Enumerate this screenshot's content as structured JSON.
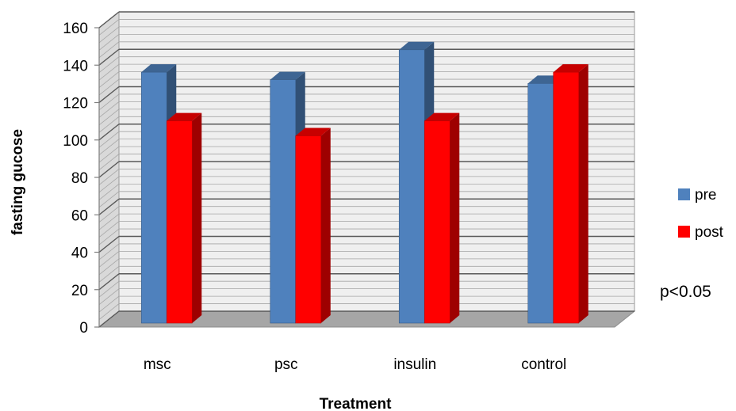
{
  "chart_data": {
    "type": "bar",
    "categories": [
      "msc",
      "psc",
      "insulin",
      "control"
    ],
    "series": [
      {
        "name": "pre",
        "values": [
          132,
          128,
          144,
          126
        ],
        "color": "#4F81BD"
      },
      {
        "name": "post",
        "values": [
          106,
          98,
          106,
          132
        ],
        "color": "#FF0000"
      }
    ],
    "xlabel": "Treatment",
    "ylabel": "fasting gucose",
    "ylim": [
      0,
      160
    ],
    "yticks": [
      0,
      20,
      40,
      60,
      80,
      100,
      120,
      140,
      160
    ],
    "grid": true,
    "legend_position": "right",
    "annotation": "p<0.05",
    "style": "3d-clustered-column"
  }
}
